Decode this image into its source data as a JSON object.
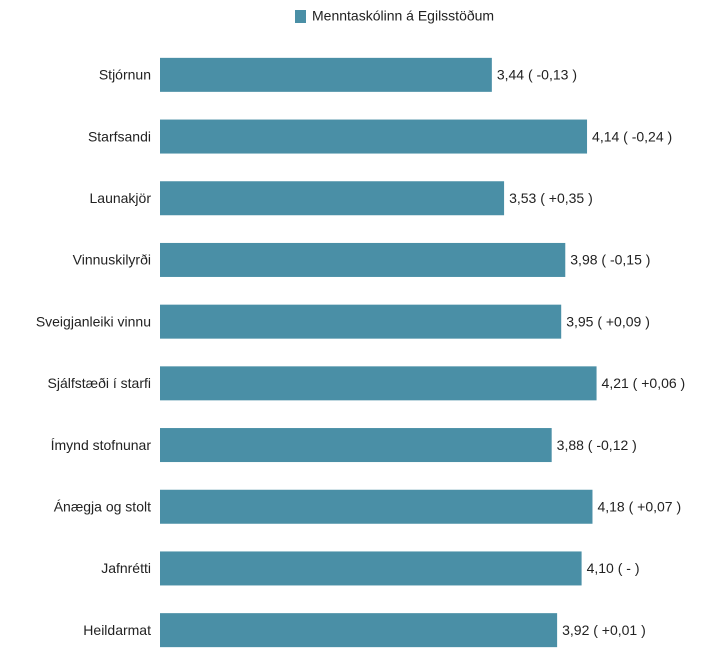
{
  "chart_data": {
    "type": "barh",
    "legend": "Menntaskólinn á Egilsstöðum",
    "color": "#4a8fa6",
    "categories": [
      "Stjórnun",
      "Starfsandi",
      "Launakjör",
      "Vinnuskilyrði",
      "Sveigjanleiki vinnu",
      "Sjálfstæði í starfi",
      "Ímynd stofnunar",
      "Ánægja og stolt",
      "Jafnrétti",
      "Heildarmat"
    ],
    "values": [
      3.44,
      4.14,
      3.53,
      3.98,
      3.95,
      4.21,
      3.88,
      4.18,
      4.1,
      3.92
    ],
    "value_labels": [
      "3,44 ( -0,13 )",
      "4,14 ( -0,24 )",
      "3,53 ( +0,35 )",
      "3,98 ( -0,15 )",
      "3,95 ( +0,09 )",
      "4,21 ( +0,06 )",
      "3,88 ( -0,12 )",
      "4,18 ( +0,07 )",
      "4,10 ( - )",
      "3,92 ( +0,01 )"
    ],
    "xlim": [
      1,
      5
    ]
  }
}
